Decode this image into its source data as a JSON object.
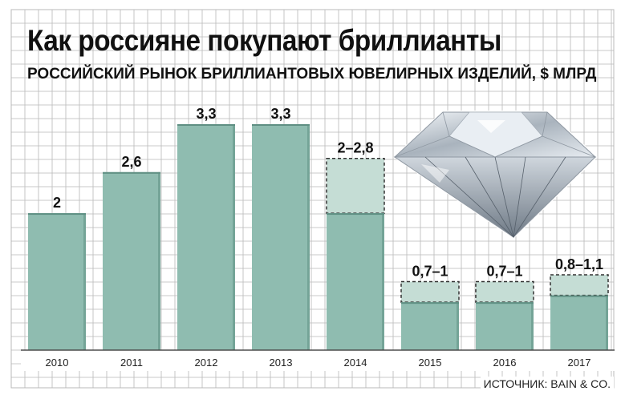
{
  "title": "Как россияне покупают бриллианты",
  "subtitle": "РОССИЙСКИЙ РЫНОК БРИЛЛИАНТОВЫХ ЮВЕЛИРНЫХ ИЗДЕЛИЙ, $ МЛРД",
  "source": "ИСТОЧНИК: BAIN & CO.",
  "colors": {
    "bar_fill": "#8fbcb0",
    "bar_shadow": "#5f8f83",
    "range_fill": "#c5ddd5",
    "grid": "#b8b8b8",
    "text": "#111111"
  },
  "chart_data": {
    "type": "bar",
    "categories": [
      "2010",
      "2011",
      "2012",
      "2013",
      "2014",
      "2015",
      "2016",
      "2017"
    ],
    "values": [
      2,
      2.6,
      3.3,
      3.3,
      2,
      0.7,
      0.7,
      0.8
    ],
    "range_high": [
      null,
      null,
      null,
      null,
      2.8,
      1,
      1,
      1.1
    ],
    "value_labels": [
      "2",
      "2,6",
      "3,3",
      "3,3",
      "2–2,8",
      "0,7–1",
      "0,7–1",
      "0,8–1,1"
    ],
    "ylim": [
      0,
      3.3
    ],
    "grid": true,
    "legend": "none"
  }
}
